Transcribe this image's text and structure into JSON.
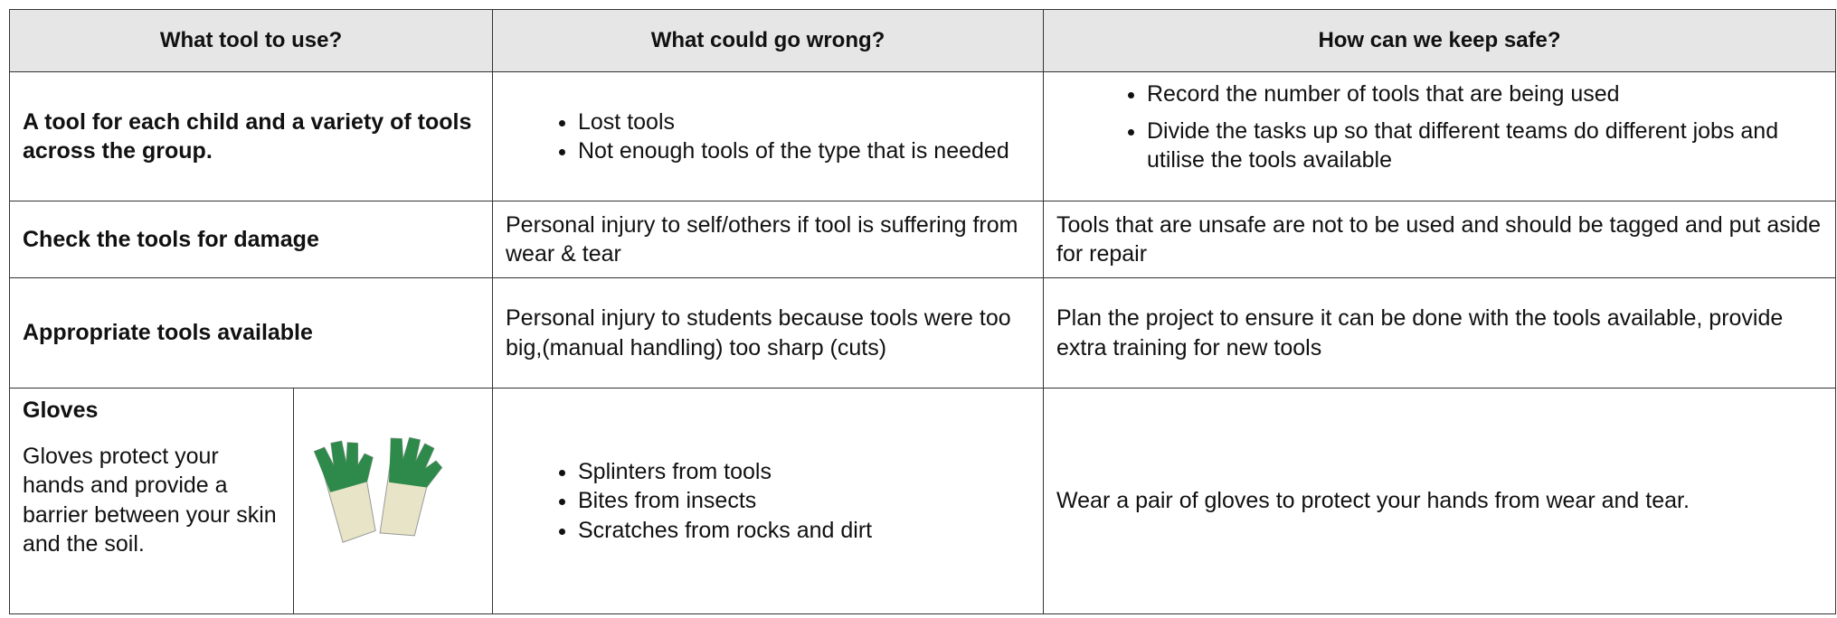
{
  "header": {
    "columns": [
      "What tool to use?",
      "What could go wrong?",
      "How can we keep safe?"
    ]
  },
  "rows": [
    {
      "tool": "A tool for each child and a variety of tools across the group.",
      "wrong": [
        "Lost tools",
        "Not enough tools of the type that is needed"
      ],
      "safe": [
        "Record the number of tools that are being used",
        "Divide the tasks up so that different teams do different jobs and utilise the tools available"
      ]
    },
    {
      "tool": "Check the tools for damage",
      "wrong": "Personal injury to self/others if tool is suffering from wear & tear",
      "safe": "Tools that are unsafe are not to be used and should be tagged and put aside for repair"
    },
    {
      "tool": "Appropriate tools available",
      "wrong": "Personal injury to students because tools were too big,(manual handling) too sharp (cuts)",
      "safe": "Plan the project to ensure it can be done with the tools available, provide extra training for new tools"
    },
    {
      "tool": "Gloves",
      "description": "Gloves protect your hands and provide a barrier between your skin and the soil.",
      "wrong": [
        "Splinters from tools",
        "Bites from insects",
        "Scratches from rocks and dirt"
      ],
      "safe": "Wear a pair of gloves to protect your hands from wear and tear."
    }
  ]
}
